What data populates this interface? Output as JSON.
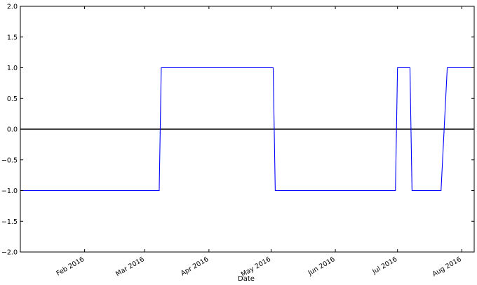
{
  "chart_data": {
    "type": "line",
    "title": "",
    "xlabel": "Date",
    "ylabel": "",
    "ylim": [
      -2.0,
      2.0
    ],
    "xlim": [
      "2016-01-01",
      "2016-08-07"
    ],
    "grid": false,
    "legend": "none",
    "y_ticks": [
      {
        "value": 2.0,
        "label": "2.0"
      },
      {
        "value": 1.5,
        "label": "1.5"
      },
      {
        "value": 1.0,
        "label": "1.0"
      },
      {
        "value": 0.5,
        "label": "0.5"
      },
      {
        "value": 0.0,
        "label": "0.0"
      },
      {
        "value": -0.5,
        "label": "−0.5"
      },
      {
        "value": -1.0,
        "label": "−1.0"
      },
      {
        "value": -1.5,
        "label": "−1.5"
      },
      {
        "value": -2.0,
        "label": "−2.0"
      }
    ],
    "x_ticks": [
      {
        "value": "2016-02-01",
        "label": "Feb 2016"
      },
      {
        "value": "2016-03-01",
        "label": "Mar 2016"
      },
      {
        "value": "2016-04-01",
        "label": "Apr 2016"
      },
      {
        "value": "2016-05-01",
        "label": "May 2016"
      },
      {
        "value": "2016-06-01",
        "label": "Jun 2016"
      },
      {
        "value": "2016-07-01",
        "label": "Jul 2016"
      },
      {
        "value": "2016-08-01",
        "label": "Aug 2016"
      }
    ],
    "series": [
      {
        "color": "#0000ff",
        "x": [
          "2016-01-01",
          "2016-03-08",
          "2016-03-09",
          "2016-05-02",
          "2016-05-03",
          "2016-06-30",
          "2016-07-01",
          "2016-07-07",
          "2016-07-08",
          "2016-07-22",
          "2016-07-25",
          "2016-08-07"
        ],
        "y": [
          -1,
          -1,
          1,
          1,
          -1,
          -1,
          1,
          1,
          -1,
          -1,
          1,
          1
        ]
      }
    ],
    "reference_line": {
      "y": 0,
      "color": "#000000"
    }
  }
}
